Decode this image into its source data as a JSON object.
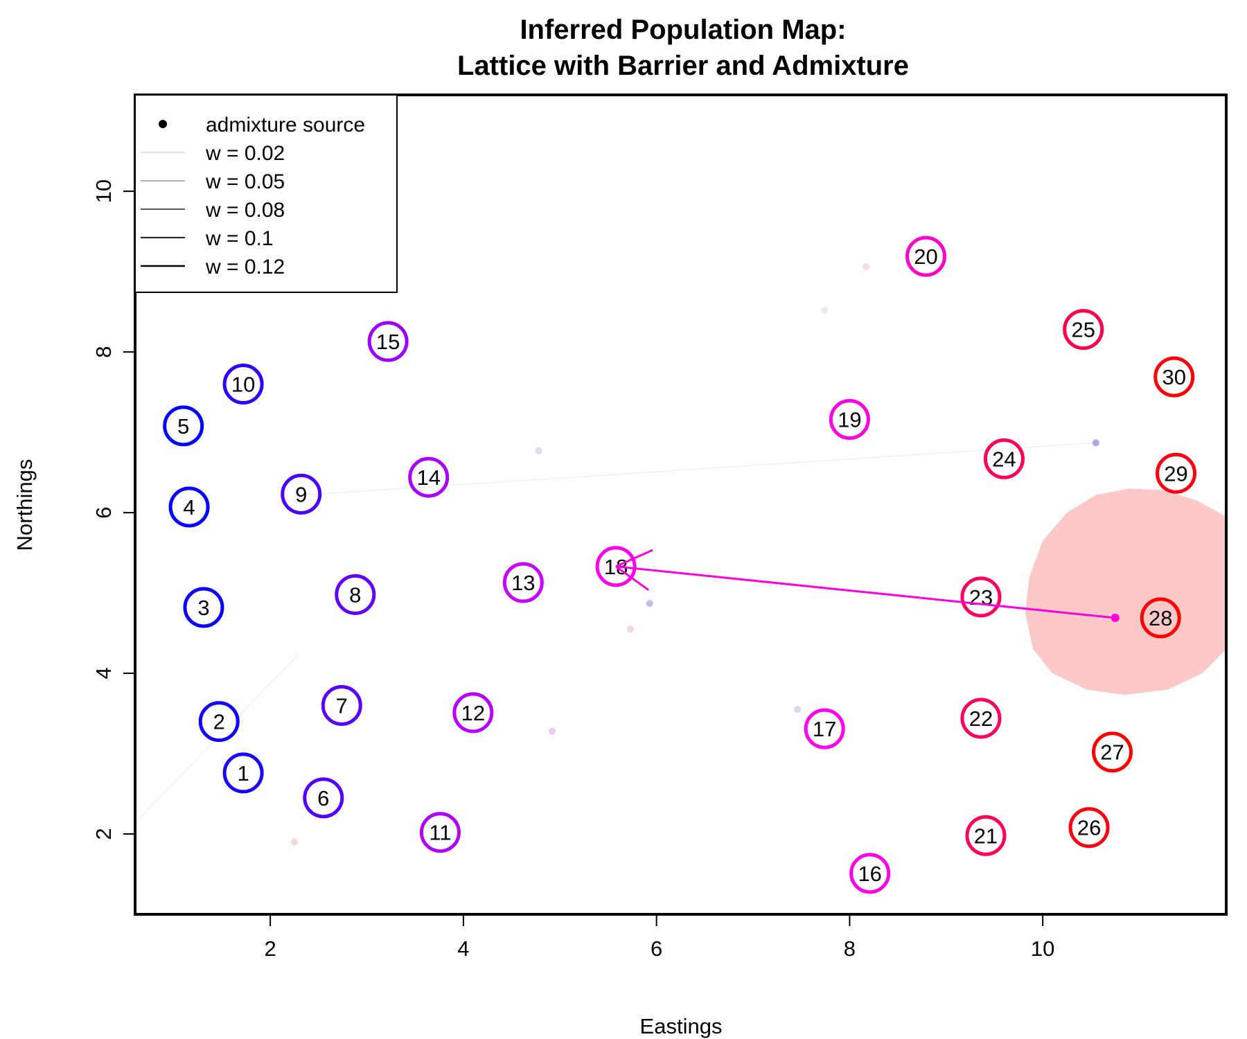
{
  "chart_data": {
    "type": "scatter",
    "title": "Inferred Population Map:",
    "subtitle": "Lattice with Barrier and Admixture",
    "xlabel": "Eastings",
    "ylabel": "Northings",
    "xlim": [
      0.6,
      11.9
    ],
    "ylim": [
      1.0,
      11.2
    ],
    "x_ticks": [
      2,
      4,
      6,
      8,
      10
    ],
    "y_ticks": [
      2,
      4,
      6,
      8,
      10
    ],
    "x_tick_labels": [
      "2",
      "4",
      "6",
      "8",
      "10"
    ],
    "y_tick_labels": [
      "2",
      "4",
      "6",
      "8",
      "10"
    ],
    "legend_position": "top-left",
    "legend": [
      {
        "label": "admixture source",
        "kind": "point"
      },
      {
        "label": "w = 0.02",
        "kind": "line",
        "w": 0.02
      },
      {
        "label": "w = 0.05",
        "kind": "line",
        "w": 0.05
      },
      {
        "label": "w = 0.08",
        "kind": "line",
        "w": 0.08
      },
      {
        "label": "w = 0.1",
        "kind": "line",
        "w": 0.1
      },
      {
        "label": "w = 0.12",
        "kind": "line",
        "w": 0.12
      }
    ],
    "populations": [
      {
        "id": "1",
        "x": 1.72,
        "y": 2.76,
        "color": "#1a00ff"
      },
      {
        "id": "2",
        "x": 1.47,
        "y": 3.4,
        "color": "#1400ff"
      },
      {
        "id": "3",
        "x": 1.31,
        "y": 4.82,
        "color": "#0a00ff"
      },
      {
        "id": "4",
        "x": 1.16,
        "y": 6.07,
        "color": "#0500ff"
      },
      {
        "id": "5",
        "x": 1.1,
        "y": 7.08,
        "color": "#0000ff"
      },
      {
        "id": "6",
        "x": 2.55,
        "y": 2.45,
        "color": "#5200ff"
      },
      {
        "id": "7",
        "x": 2.74,
        "y": 3.6,
        "color": "#5a00ff"
      },
      {
        "id": "8",
        "x": 2.88,
        "y": 4.98,
        "color": "#6200ff"
      },
      {
        "id": "9",
        "x": 2.32,
        "y": 6.23,
        "color": "#4a00ff"
      },
      {
        "id": "10",
        "x": 1.72,
        "y": 7.6,
        "color": "#3000ff"
      },
      {
        "id": "11",
        "x": 3.76,
        "y": 2.02,
        "color": "#b000ff"
      },
      {
        "id": "12",
        "x": 4.1,
        "y": 3.51,
        "color": "#b800ff"
      },
      {
        "id": "13",
        "x": 4.62,
        "y": 5.13,
        "color": "#c800ff"
      },
      {
        "id": "14",
        "x": 3.64,
        "y": 6.44,
        "color": "#a800ff"
      },
      {
        "id": "15",
        "x": 3.22,
        "y": 8.13,
        "color": "#9c00ff"
      },
      {
        "id": "16",
        "x": 8.21,
        "y": 1.51,
        "color": "#ff00e6"
      },
      {
        "id": "17",
        "x": 7.74,
        "y": 3.31,
        "color": "#ff00f0"
      },
      {
        "id": "18",
        "x": 5.58,
        "y": 5.33,
        "color": "#ff00ee"
      },
      {
        "id": "19",
        "x": 8.0,
        "y": 7.16,
        "color": "#ff00e0"
      },
      {
        "id": "20",
        "x": 8.79,
        "y": 9.19,
        "color": "#ff00c8"
      },
      {
        "id": "21",
        "x": 9.41,
        "y": 1.98,
        "color": "#ff0058"
      },
      {
        "id": "22",
        "x": 9.36,
        "y": 3.44,
        "color": "#ff0060"
      },
      {
        "id": "23",
        "x": 9.36,
        "y": 4.95,
        "color": "#ff0060"
      },
      {
        "id": "24",
        "x": 9.6,
        "y": 6.67,
        "color": "#ff0055"
      },
      {
        "id": "25",
        "x": 10.42,
        "y": 8.28,
        "color": "#ff0048"
      },
      {
        "id": "26",
        "x": 10.48,
        "y": 2.08,
        "color": "#ff0010"
      },
      {
        "id": "27",
        "x": 10.72,
        "y": 3.02,
        "color": "#ff0000"
      },
      {
        "id": "28",
        "x": 11.22,
        "y": 4.69,
        "color": "#ff0000"
      },
      {
        "id": "29",
        "x": 11.38,
        "y": 6.49,
        "color": "#ff0010"
      },
      {
        "id": "30",
        "x": 11.36,
        "y": 7.69,
        "color": "#ff0008"
      }
    ],
    "admixture": {
      "source": {
        "x": 10.75,
        "y": 4.69
      },
      "target": {
        "x": 5.58,
        "y": 5.33
      },
      "color": "#ff00dc",
      "region_color": "#fcc8c8",
      "region": [
        [
          10.9,
          6.3
        ],
        [
          11.25,
          6.28
        ],
        [
          11.6,
          6.15
        ],
        [
          11.9,
          5.95
        ],
        [
          11.9,
          4.3
        ],
        [
          11.65,
          4.0
        ],
        [
          11.3,
          3.8
        ],
        [
          10.85,
          3.73
        ],
        [
          10.45,
          3.8
        ],
        [
          10.1,
          4.0
        ],
        [
          9.9,
          4.3
        ],
        [
          9.82,
          4.75
        ],
        [
          9.86,
          5.2
        ],
        [
          10.0,
          5.65
        ],
        [
          10.25,
          6.0
        ],
        [
          10.55,
          6.22
        ]
      ]
    },
    "faint_edges": [
      {
        "x1": 2.35,
        "y1": 6.22,
        "x2": 10.55,
        "y2": 6.87,
        "w": 0.02
      },
      {
        "x1": 0.65,
        "y1": 2.2,
        "x2": 2.3,
        "y2": 4.25,
        "w": 0.02
      }
    ],
    "faint_points": [
      {
        "x": 4.78,
        "y": 6.77,
        "color": "#d8c8e8"
      },
      {
        "x": 10.55,
        "y": 6.87,
        "color": "#8c82e0"
      },
      {
        "x": 5.93,
        "y": 4.87,
        "color": "#a8a0e8"
      },
      {
        "x": 5.73,
        "y": 4.55,
        "color": "#f0c8c8"
      },
      {
        "x": 4.92,
        "y": 3.28,
        "color": "#e8b0e8"
      },
      {
        "x": 7.46,
        "y": 3.55,
        "color": "#c8c8e0"
      },
      {
        "x": 7.74,
        "y": 8.52,
        "color": "#e0e0e0"
      },
      {
        "x": 8.17,
        "y": 9.06,
        "color": "#f0d0d0"
      },
      {
        "x": 2.25,
        "y": 1.9,
        "color": "#f0c8c8"
      }
    ]
  }
}
